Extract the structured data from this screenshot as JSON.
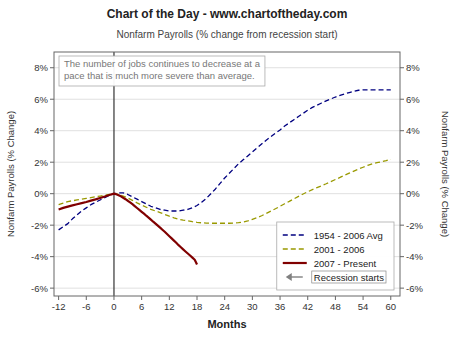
{
  "chart_data": {
    "type": "line",
    "title": "Chart of the Day - www.chartoftheday.com",
    "subtitle": "Nonfarm Payrolls (% change from recession start)",
    "annotations": [
      "The number of jobs continues to decrease at a",
      "pace that is much more severe than average."
    ],
    "x_label": "Months",
    "y_label": "Nonfarm Payrolls (% Change)",
    "y2_label": "Nonfarm Payrolls (% Change)",
    "xlim": [
      -13,
      62
    ],
    "ylim": [
      -6.5,
      9.0
    ],
    "y2lim": [
      -6.5,
      9.0
    ],
    "xticks": [
      -12,
      -6,
      0,
      6,
      12,
      18,
      24,
      30,
      36,
      42,
      48,
      54,
      60
    ],
    "yticks": [
      {
        "value": -6,
        "label": "-6%"
      },
      {
        "value": -4,
        "label": "-4%"
      },
      {
        "value": -2,
        "label": "-2%"
      },
      {
        "value": 0,
        "label": "0%"
      },
      {
        "value": 2,
        "label": "2%"
      },
      {
        "value": 4,
        "label": "4%"
      },
      {
        "value": 6,
        "label": "6%"
      },
      {
        "value": 8,
        "label": "8%"
      }
    ],
    "y2ticks": [
      {
        "value": -6,
        "label": "-6%"
      },
      {
        "value": -4,
        "label": "-4%"
      },
      {
        "value": -2,
        "label": "-2%"
      },
      {
        "value": 0,
        "label": "0%"
      },
      {
        "value": 2,
        "label": "2%"
      },
      {
        "value": 4,
        "label": "4%"
      },
      {
        "value": 6,
        "label": "6%"
      },
      {
        "value": 8,
        "label": "8%"
      }
    ],
    "grid": true,
    "legend": "lower right",
    "series": [
      {
        "name": "1954 - 2006 Avg",
        "color": "#000080",
        "line_style": "dashed",
        "x": [
          -12,
          -11,
          -10,
          -9,
          -8,
          -7,
          -6,
          -5,
          -4,
          -3,
          -2,
          -1,
          0,
          1,
          2,
          3,
          4,
          5,
          6,
          7,
          8,
          9,
          10,
          11,
          12,
          13,
          14,
          15,
          16,
          17,
          18,
          19,
          20,
          21,
          22,
          23,
          24,
          25,
          26,
          27,
          28,
          29,
          30,
          31,
          32,
          33,
          34,
          35,
          36,
          37,
          38,
          39,
          40,
          41,
          42,
          43,
          44,
          45,
          46,
          47,
          48,
          49,
          50,
          51,
          52,
          53,
          54,
          55,
          56,
          57,
          58,
          59,
          60
        ],
        "values": [
          -2.3,
          -2.1,
          -1.9,
          -1.6,
          -1.35,
          -1.1,
          -0.9,
          -0.7,
          -0.55,
          -0.4,
          -0.25,
          -0.1,
          0.0,
          0.05,
          0.05,
          -0.05,
          -0.2,
          -0.35,
          -0.5,
          -0.65,
          -0.8,
          -0.9,
          -1.0,
          -1.05,
          -1.1,
          -1.1,
          -1.1,
          -1.05,
          -1.0,
          -0.9,
          -0.75,
          -0.55,
          -0.3,
          0.0,
          0.3,
          0.65,
          1.0,
          1.3,
          1.6,
          1.9,
          2.15,
          2.4,
          2.65,
          2.9,
          3.15,
          3.4,
          3.62,
          3.85,
          4.05,
          4.3,
          4.5,
          4.7,
          4.9,
          5.1,
          5.3,
          5.48,
          5.62,
          5.76,
          5.9,
          6.02,
          6.14,
          6.24,
          6.34,
          6.42,
          6.5,
          6.57,
          6.6,
          6.6,
          6.6,
          6.6,
          6.6,
          6.6,
          6.6
        ]
      },
      {
        "name": "2001 - 2006",
        "color": "#999900",
        "line_style": "dashed",
        "x": [
          -12,
          -11,
          -10,
          -9,
          -8,
          -7,
          -6,
          -5,
          -4,
          -3,
          -2,
          -1,
          0,
          1,
          2,
          3,
          4,
          5,
          6,
          7,
          8,
          9,
          10,
          11,
          12,
          13,
          14,
          15,
          16,
          17,
          18,
          19,
          20,
          21,
          22,
          23,
          24,
          25,
          26,
          27,
          28,
          29,
          30,
          31,
          32,
          33,
          34,
          35,
          36,
          37,
          38,
          39,
          40,
          41,
          42,
          43,
          44,
          45,
          46,
          47,
          48,
          49,
          50,
          51,
          52,
          53,
          54,
          55,
          56,
          57,
          58,
          59,
          60
        ],
        "values": [
          -0.7,
          -0.6,
          -0.5,
          -0.45,
          -0.4,
          -0.35,
          -0.3,
          -0.25,
          -0.2,
          -0.15,
          -0.1,
          -0.05,
          0.0,
          -0.05,
          -0.15,
          -0.28,
          -0.42,
          -0.58,
          -0.72,
          -0.86,
          -1.0,
          -1.1,
          -1.2,
          -1.32,
          -1.43,
          -1.53,
          -1.62,
          -1.68,
          -1.73,
          -1.78,
          -1.82,
          -1.85,
          -1.87,
          -1.88,
          -1.88,
          -1.88,
          -1.88,
          -1.88,
          -1.87,
          -1.84,
          -1.8,
          -1.73,
          -1.63,
          -1.53,
          -1.4,
          -1.26,
          -1.11,
          -0.96,
          -0.8,
          -0.64,
          -0.49,
          -0.33,
          -0.17,
          -0.02,
          0.12,
          0.26,
          0.38,
          0.5,
          0.63,
          0.77,
          0.9,
          1.03,
          1.17,
          1.3,
          1.43,
          1.56,
          1.68,
          1.8,
          1.9,
          1.97,
          2.03,
          2.1,
          2.18
        ]
      },
      {
        "name": "2007 - Present",
        "color": "#800000",
        "line_style": "solid",
        "x": [
          -12,
          -11,
          -10,
          -9,
          -8,
          -7,
          -6,
          -5,
          -4,
          -3,
          -2,
          -1,
          0,
          0.5,
          1,
          1.5,
          2,
          2.5,
          3,
          3.5,
          4,
          4.5,
          5,
          5.5,
          6,
          6.5,
          7,
          7.5,
          8,
          8.5,
          9,
          9.5,
          10,
          10.5,
          11,
          11.5,
          12,
          12.5,
          13,
          13.5,
          14,
          14.5,
          15,
          15.5,
          16,
          16.5,
          17,
          17.5,
          18
        ],
        "values": [
          -1.0,
          -0.9,
          -0.82,
          -0.74,
          -0.67,
          -0.6,
          -0.53,
          -0.44,
          -0.36,
          -0.27,
          -0.18,
          -0.08,
          0.0,
          -0.04,
          -0.1,
          -0.17,
          -0.26,
          -0.35,
          -0.45,
          -0.56,
          -0.67,
          -0.79,
          -0.91,
          -1.03,
          -1.15,
          -1.27,
          -1.4,
          -1.52,
          -1.65,
          -1.78,
          -1.9,
          -2.03,
          -2.16,
          -2.29,
          -2.42,
          -2.56,
          -2.7,
          -2.84,
          -2.98,
          -3.12,
          -3.27,
          -3.4,
          -3.54,
          -3.67,
          -3.8,
          -3.93,
          -4.06,
          -4.2,
          -4.5
        ]
      }
    ],
    "reference_lines": [
      {
        "name": "Recession starts",
        "x": 0,
        "color": "#808080"
      }
    ]
  }
}
